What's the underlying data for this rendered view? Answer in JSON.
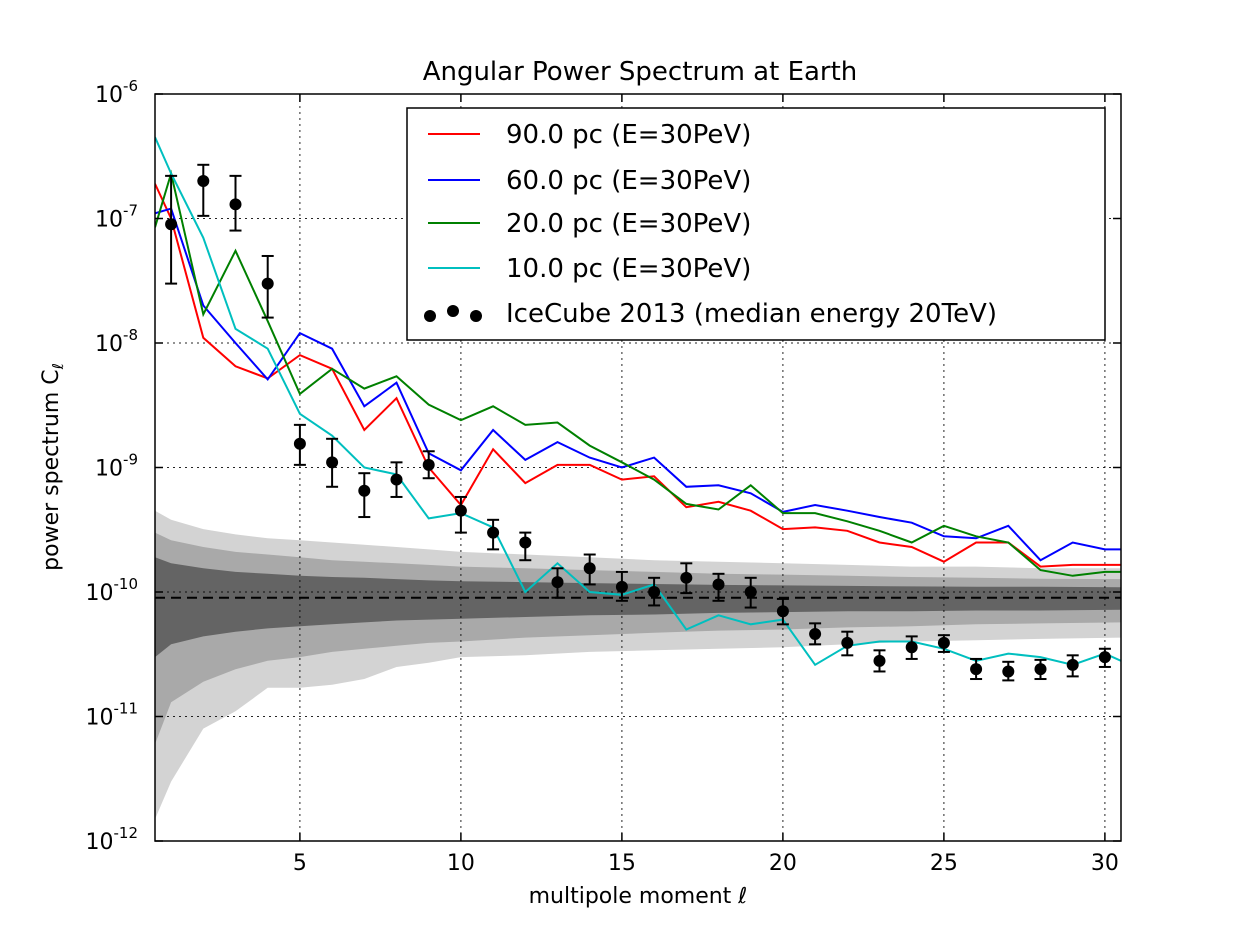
{
  "chart_data": {
    "type": "line",
    "title": "Angular Power Spectrum at Earth",
    "xlabel": "multipole moment ℓ",
    "ylabel": "power spectrum C",
    "ylabel_sub": "ℓ",
    "xlim": [
      0.5,
      30.5
    ],
    "ylim": [
      1e-12,
      1e-06
    ],
    "yscale": "log",
    "grid": true,
    "legend_position": "top-right",
    "x_ticks": [
      5,
      10,
      15,
      20,
      25,
      30
    ],
    "y_ticks": [
      {
        "value": 1e-12,
        "base": "10",
        "exp": "-12"
      },
      {
        "value": 1e-11,
        "base": "10",
        "exp": "-11"
      },
      {
        "value": 1e-10,
        "base": "10",
        "exp": "-10"
      },
      {
        "value": 1e-09,
        "base": "10",
        "exp": "-9"
      },
      {
        "value": 1e-08,
        "base": "10",
        "exp": "-8"
      },
      {
        "value": 1e-07,
        "base": "10",
        "exp": "-7"
      },
      {
        "value": 1e-06,
        "base": "10",
        "exp": "-6"
      }
    ],
    "x": [
      0.5,
      1,
      2,
      3,
      4,
      5,
      6,
      7,
      8,
      9,
      10,
      11,
      12,
      13,
      14,
      15,
      16,
      17,
      18,
      19,
      20,
      21,
      22,
      23,
      24,
      25,
      26,
      27,
      28,
      29,
      30,
      30.5
    ],
    "series": [
      {
        "name": "90.0 pc (E=30PeV)",
        "color": "#ff0000",
        "values": [
          1.9e-07,
          1e-07,
          1.1e-08,
          6.5e-09,
          5.2e-09,
          8e-09,
          6.2e-09,
          2e-09,
          3.6e-09,
          1e-09,
          5e-10,
          1.4e-09,
          7.5e-10,
          1.05e-09,
          1.05e-09,
          8e-10,
          8.5e-10,
          4.8e-10,
          5.3e-10,
          4.5e-10,
          3.2e-10,
          3.3e-10,
          3.1e-10,
          2.5e-10,
          2.3e-10,
          1.75e-10,
          2.5e-10,
          2.5e-10,
          1.6e-10,
          1.65e-10,
          1.65e-10,
          1.65e-10
        ]
      },
      {
        "name": "60.0 pc (E=30PeV)",
        "color": "#0000ff",
        "values": [
          1.1e-07,
          1.2e-07,
          2e-08,
          1e-08,
          5.1e-09,
          1.2e-08,
          9e-09,
          3.1e-09,
          4.8e-09,
          1.3e-09,
          9.5e-10,
          2e-09,
          1.15e-09,
          1.6e-09,
          1.2e-09,
          1e-09,
          1.2e-09,
          7e-10,
          7.2e-10,
          6.2e-10,
          4.4e-10,
          5e-10,
          4.5e-10,
          4e-10,
          3.6e-10,
          2.8e-10,
          2.7e-10,
          3.4e-10,
          1.8e-10,
          2.5e-10,
          2.2e-10,
          2.2e-10
        ]
      },
      {
        "name": "20.0 pc (E=30PeV)",
        "color": "#008000",
        "values": [
          8.5e-08,
          2.3e-07,
          1.7e-08,
          5.5e-08,
          1.5e-08,
          3.9e-09,
          6.2e-09,
          4.3e-09,
          5.4e-09,
          3.2e-09,
          2.4e-09,
          3.1e-09,
          2.2e-09,
          2.3e-09,
          1.5e-09,
          1.1e-09,
          8e-10,
          5.1e-10,
          4.6e-10,
          7.2e-10,
          4.3e-10,
          4.3e-10,
          3.7e-10,
          3.1e-10,
          2.5e-10,
          3.4e-10,
          2.8e-10,
          2.5e-10,
          1.5e-10,
          1.35e-10,
          1.45e-10,
          1.45e-10
        ]
      },
      {
        "name": "10.0 pc (E=30PeV)",
        "color": "#00bfbf",
        "values": [
          4.5e-07,
          2.3e-07,
          7e-08,
          1.3e-08,
          9e-09,
          2.7e-09,
          1.8e-09,
          1e-09,
          8.8e-10,
          3.9e-10,
          4.3e-10,
          3.3e-10,
          1e-10,
          1.7e-10,
          1e-10,
          9.5e-11,
          1.15e-10,
          5e-11,
          6.5e-11,
          5.5e-11,
          6e-11,
          2.6e-11,
          3.7e-11,
          4e-11,
          4e-11,
          3.5e-11,
          2.8e-11,
          3.2e-11,
          3e-11,
          2.6e-11,
          3.2e-11,
          2.8e-11
        ]
      }
    ],
    "observed": {
      "name": "IceCube 2013 (median energy 20TeV)",
      "color": "#000000",
      "points": [
        {
          "x": 1,
          "y": 9e-08,
          "lo": 3e-08,
          "hi": 2.2e-07
        },
        {
          "x": 2,
          "y": 2e-07,
          "lo": 1.05e-07,
          "hi": 2.7e-07
        },
        {
          "x": 3,
          "y": 1.3e-07,
          "lo": 8e-08,
          "hi": 2.2e-07
        },
        {
          "x": 4,
          "y": 3e-08,
          "lo": 1.6e-08,
          "hi": 5e-08
        },
        {
          "x": 5,
          "y": 1.55e-09,
          "lo": 1.05e-09,
          "hi": 2.2e-09
        },
        {
          "x": 6,
          "y": 1.1e-09,
          "lo": 7e-10,
          "hi": 1.7e-09
        },
        {
          "x": 7,
          "y": 6.5e-10,
          "lo": 4e-10,
          "hi": 9e-10
        },
        {
          "x": 8,
          "y": 8e-10,
          "lo": 5.8e-10,
          "hi": 1.1e-09
        },
        {
          "x": 9,
          "y": 1.05e-09,
          "lo": 8.2e-10,
          "hi": 1.35e-09
        },
        {
          "x": 10,
          "y": 4.5e-10,
          "lo": 3e-10,
          "hi": 5.8e-10
        },
        {
          "x": 11,
          "y": 3e-10,
          "lo": 2.2e-10,
          "hi": 3.8e-10
        },
        {
          "x": 12,
          "y": 2.5e-10,
          "lo": 1.8e-10,
          "hi": 3e-10
        },
        {
          "x": 13,
          "y": 1.2e-10,
          "lo": 9e-11,
          "hi": 1.55e-10
        },
        {
          "x": 14,
          "y": 1.55e-10,
          "lo": 1.15e-10,
          "hi": 2e-10
        },
        {
          "x": 15,
          "y": 1.1e-10,
          "lo": 8.5e-11,
          "hi": 1.45e-10
        },
        {
          "x": 16,
          "y": 1e-10,
          "lo": 7.8e-11,
          "hi": 1.3e-10
        },
        {
          "x": 17,
          "y": 1.3e-10,
          "lo": 9.8e-11,
          "hi": 1.7e-10
        },
        {
          "x": 18,
          "y": 1.15e-10,
          "lo": 8.5e-11,
          "hi": 1.4e-10
        },
        {
          "x": 19,
          "y": 1e-10,
          "lo": 7.5e-11,
          "hi": 1.3e-10
        },
        {
          "x": 20,
          "y": 7e-11,
          "lo": 5.5e-11,
          "hi": 8.8e-11
        },
        {
          "x": 21,
          "y": 4.6e-11,
          "lo": 3.8e-11,
          "hi": 5.6e-11
        },
        {
          "x": 22,
          "y": 3.9e-11,
          "lo": 3.1e-11,
          "hi": 4.8e-11
        },
        {
          "x": 23,
          "y": 2.8e-11,
          "lo": 2.3e-11,
          "hi": 3.4e-11
        },
        {
          "x": 24,
          "y": 3.6e-11,
          "lo": 2.9e-11,
          "hi": 4.4e-11
        },
        {
          "x": 25,
          "y": 3.9e-11,
          "lo": 3.3e-11,
          "hi": 4.5e-11
        },
        {
          "x": 26,
          "y": 2.4e-11,
          "lo": 2e-11,
          "hi": 2.9e-11
        },
        {
          "x": 27,
          "y": 2.3e-11,
          "lo": 1.95e-11,
          "hi": 2.75e-11
        },
        {
          "x": 28,
          "y": 2.4e-11,
          "lo": 2e-11,
          "hi": 2.85e-11
        },
        {
          "x": 29,
          "y": 2.6e-11,
          "lo": 2.1e-11,
          "hi": 3.1e-11
        },
        {
          "x": 30,
          "y": 3e-11,
          "lo": 2.5e-11,
          "hi": 3.5e-11
        }
      ]
    },
    "reference_line": {
      "y": 9e-11,
      "style": "dashed",
      "color": "#000000"
    },
    "bands": {
      "x": [
        0.5,
        1,
        2,
        3,
        4,
        5,
        6,
        7,
        8,
        9,
        10,
        12,
        14,
        16,
        18,
        20,
        22,
        24,
        26,
        28,
        30.5
      ],
      "levels": [
        {
          "color": "#d3d3d3",
          "lower": [
            1.5e-12,
            3e-12,
            8e-12,
            1.1e-11,
            1.7e-11,
            1.7e-11,
            1.8e-11,
            2e-11,
            2.5e-11,
            2.7e-11,
            3e-11,
            3.1e-11,
            3.3e-11,
            3.4e-11,
            3.5e-11,
            3.6e-11,
            3.8e-11,
            4e-11,
            4.1e-11,
            4.2e-11,
            4.3e-11
          ],
          "upper": [
            4.5e-10,
            3.8e-10,
            3.2e-10,
            2.9e-10,
            2.7e-10,
            2.6e-10,
            2.5e-10,
            2.4e-10,
            2.3e-10,
            2.2e-10,
            2.1e-10,
            2e-10,
            1.9e-10,
            1.8e-10,
            1.75e-10,
            1.7e-10,
            1.65e-10,
            1.6e-10,
            1.6e-10,
            1.55e-10,
            1.55e-10
          ]
        },
        {
          "color": "#a9a9a9",
          "lower": [
            6e-12,
            1.3e-11,
            1.9e-11,
            2.4e-11,
            2.8e-11,
            3e-11,
            3.3e-11,
            3.5e-11,
            3.7e-11,
            3.9e-11,
            4e-11,
            4.3e-11,
            4.5e-11,
            4.7e-11,
            4.9e-11,
            5e-11,
            5.2e-11,
            5.3e-11,
            5.5e-11,
            5.6e-11,
            5.7e-11
          ],
          "upper": [
            3e-10,
            2.6e-10,
            2.3e-10,
            2.1e-10,
            2e-10,
            1.9e-10,
            1.8e-10,
            1.75e-10,
            1.7e-10,
            1.65e-10,
            1.6e-10,
            1.55e-10,
            1.5e-10,
            1.45e-10,
            1.4e-10,
            1.38e-10,
            1.35e-10,
            1.32e-10,
            1.3e-10,
            1.28e-10,
            1.27e-10
          ]
        },
        {
          "color": "#646464",
          "lower": [
            3e-11,
            3.8e-11,
            4.4e-11,
            4.8e-11,
            5.1e-11,
            5.3e-11,
            5.5e-11,
            5.7e-11,
            5.9e-11,
            6e-11,
            6.1e-11,
            6.3e-11,
            6.5e-11,
            6.6e-11,
            6.8e-11,
            6.9e-11,
            7e-11,
            7e-11,
            7.1e-11,
            7.1e-11,
            7.2e-11
          ],
          "upper": [
            1.9e-10,
            1.7e-10,
            1.55e-10,
            1.45e-10,
            1.4e-10,
            1.35e-10,
            1.32e-10,
            1.3e-10,
            1.27e-10,
            1.24e-10,
            1.22e-10,
            1.2e-10,
            1.18e-10,
            1.16e-10,
            1.14e-10,
            1.13e-10,
            1.12e-10,
            1.11e-10,
            1.1e-10,
            1.1e-10,
            1.09e-10
          ]
        }
      ]
    }
  }
}
